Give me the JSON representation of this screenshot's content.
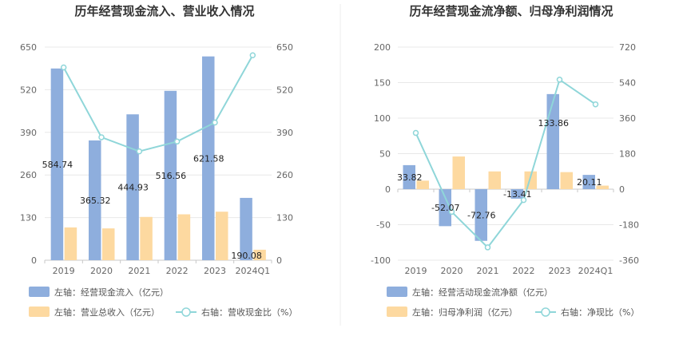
{
  "chart_data": [
    {
      "type": "bar",
      "title": "历年经营现金流入、营业收入情况",
      "categories": [
        "2019",
        "2020",
        "2021",
        "2022",
        "2023",
        "2024Q1"
      ],
      "left_axis": {
        "ylim": [
          0,
          650
        ],
        "ticks": [
          0,
          130,
          260,
          390,
          520,
          650
        ]
      },
      "right_axis": {
        "ylim": [
          0,
          650
        ],
        "ticks": [
          0,
          130,
          260,
          390,
          520,
          650
        ]
      },
      "series": [
        {
          "name": "左轴：经营现金流入（亿元）",
          "kind": "bar",
          "axis": "left",
          "color": "#8eaedd",
          "values": [
            584.74,
            365.32,
            444.93,
            516.56,
            621.58,
            190.08
          ],
          "labels": [
            "584.74",
            "365.32",
            "444.93",
            "516.56",
            "621.58",
            "190.08"
          ]
        },
        {
          "name": "左轴：营业总收入（亿元）",
          "kind": "bar",
          "axis": "left",
          "color": "#fdd9a0",
          "values": [
            100,
            97,
            132,
            140,
            148,
            32
          ]
        },
        {
          "name": "右轴：营收现金比（%）",
          "kind": "line",
          "axis": "right",
          "color": "#8fd6d9",
          "values": [
            588,
            375,
            332,
            362,
            420,
            625
          ]
        }
      ],
      "grid": true,
      "legend": "bottom"
    },
    {
      "type": "bar",
      "title": "历年经营现金流净额、归母净利润情况",
      "categories": [
        "2019",
        "2020",
        "2021",
        "2022",
        "2023",
        "2024Q1"
      ],
      "left_axis": {
        "ylim": [
          -100,
          200
        ],
        "ticks": [
          -100,
          -50,
          0,
          50,
          100,
          150,
          200
        ]
      },
      "right_axis": {
        "ylim": [
          -360,
          720
        ],
        "ticks": [
          -360,
          -180,
          0,
          180,
          360,
          540,
          720
        ]
      },
      "series": [
        {
          "name": "左轴：经营活动现金流净额（亿元）",
          "kind": "bar",
          "axis": "left",
          "color": "#8eaedd",
          "values": [
            33.82,
            -52.07,
            -72.76,
            -13.41,
            133.86,
            20.11
          ],
          "labels": [
            "33.82",
            "-52.07",
            "-72.76",
            "-13.41",
            "133.86",
            "20.11"
          ]
        },
        {
          "name": "左轴：归母净利润（亿元）",
          "kind": "bar",
          "axis": "left",
          "color": "#fdd9a0",
          "values": [
            12,
            46,
            25,
            25,
            24,
            5
          ]
        },
        {
          "name": "右轴：净现比（%）",
          "kind": "line",
          "axis": "right",
          "color": "#8fd6d9",
          "values": [
            285,
            -115,
            -295,
            -55,
            555,
            430
          ]
        }
      ],
      "grid": true,
      "legend": "bottom"
    }
  ]
}
